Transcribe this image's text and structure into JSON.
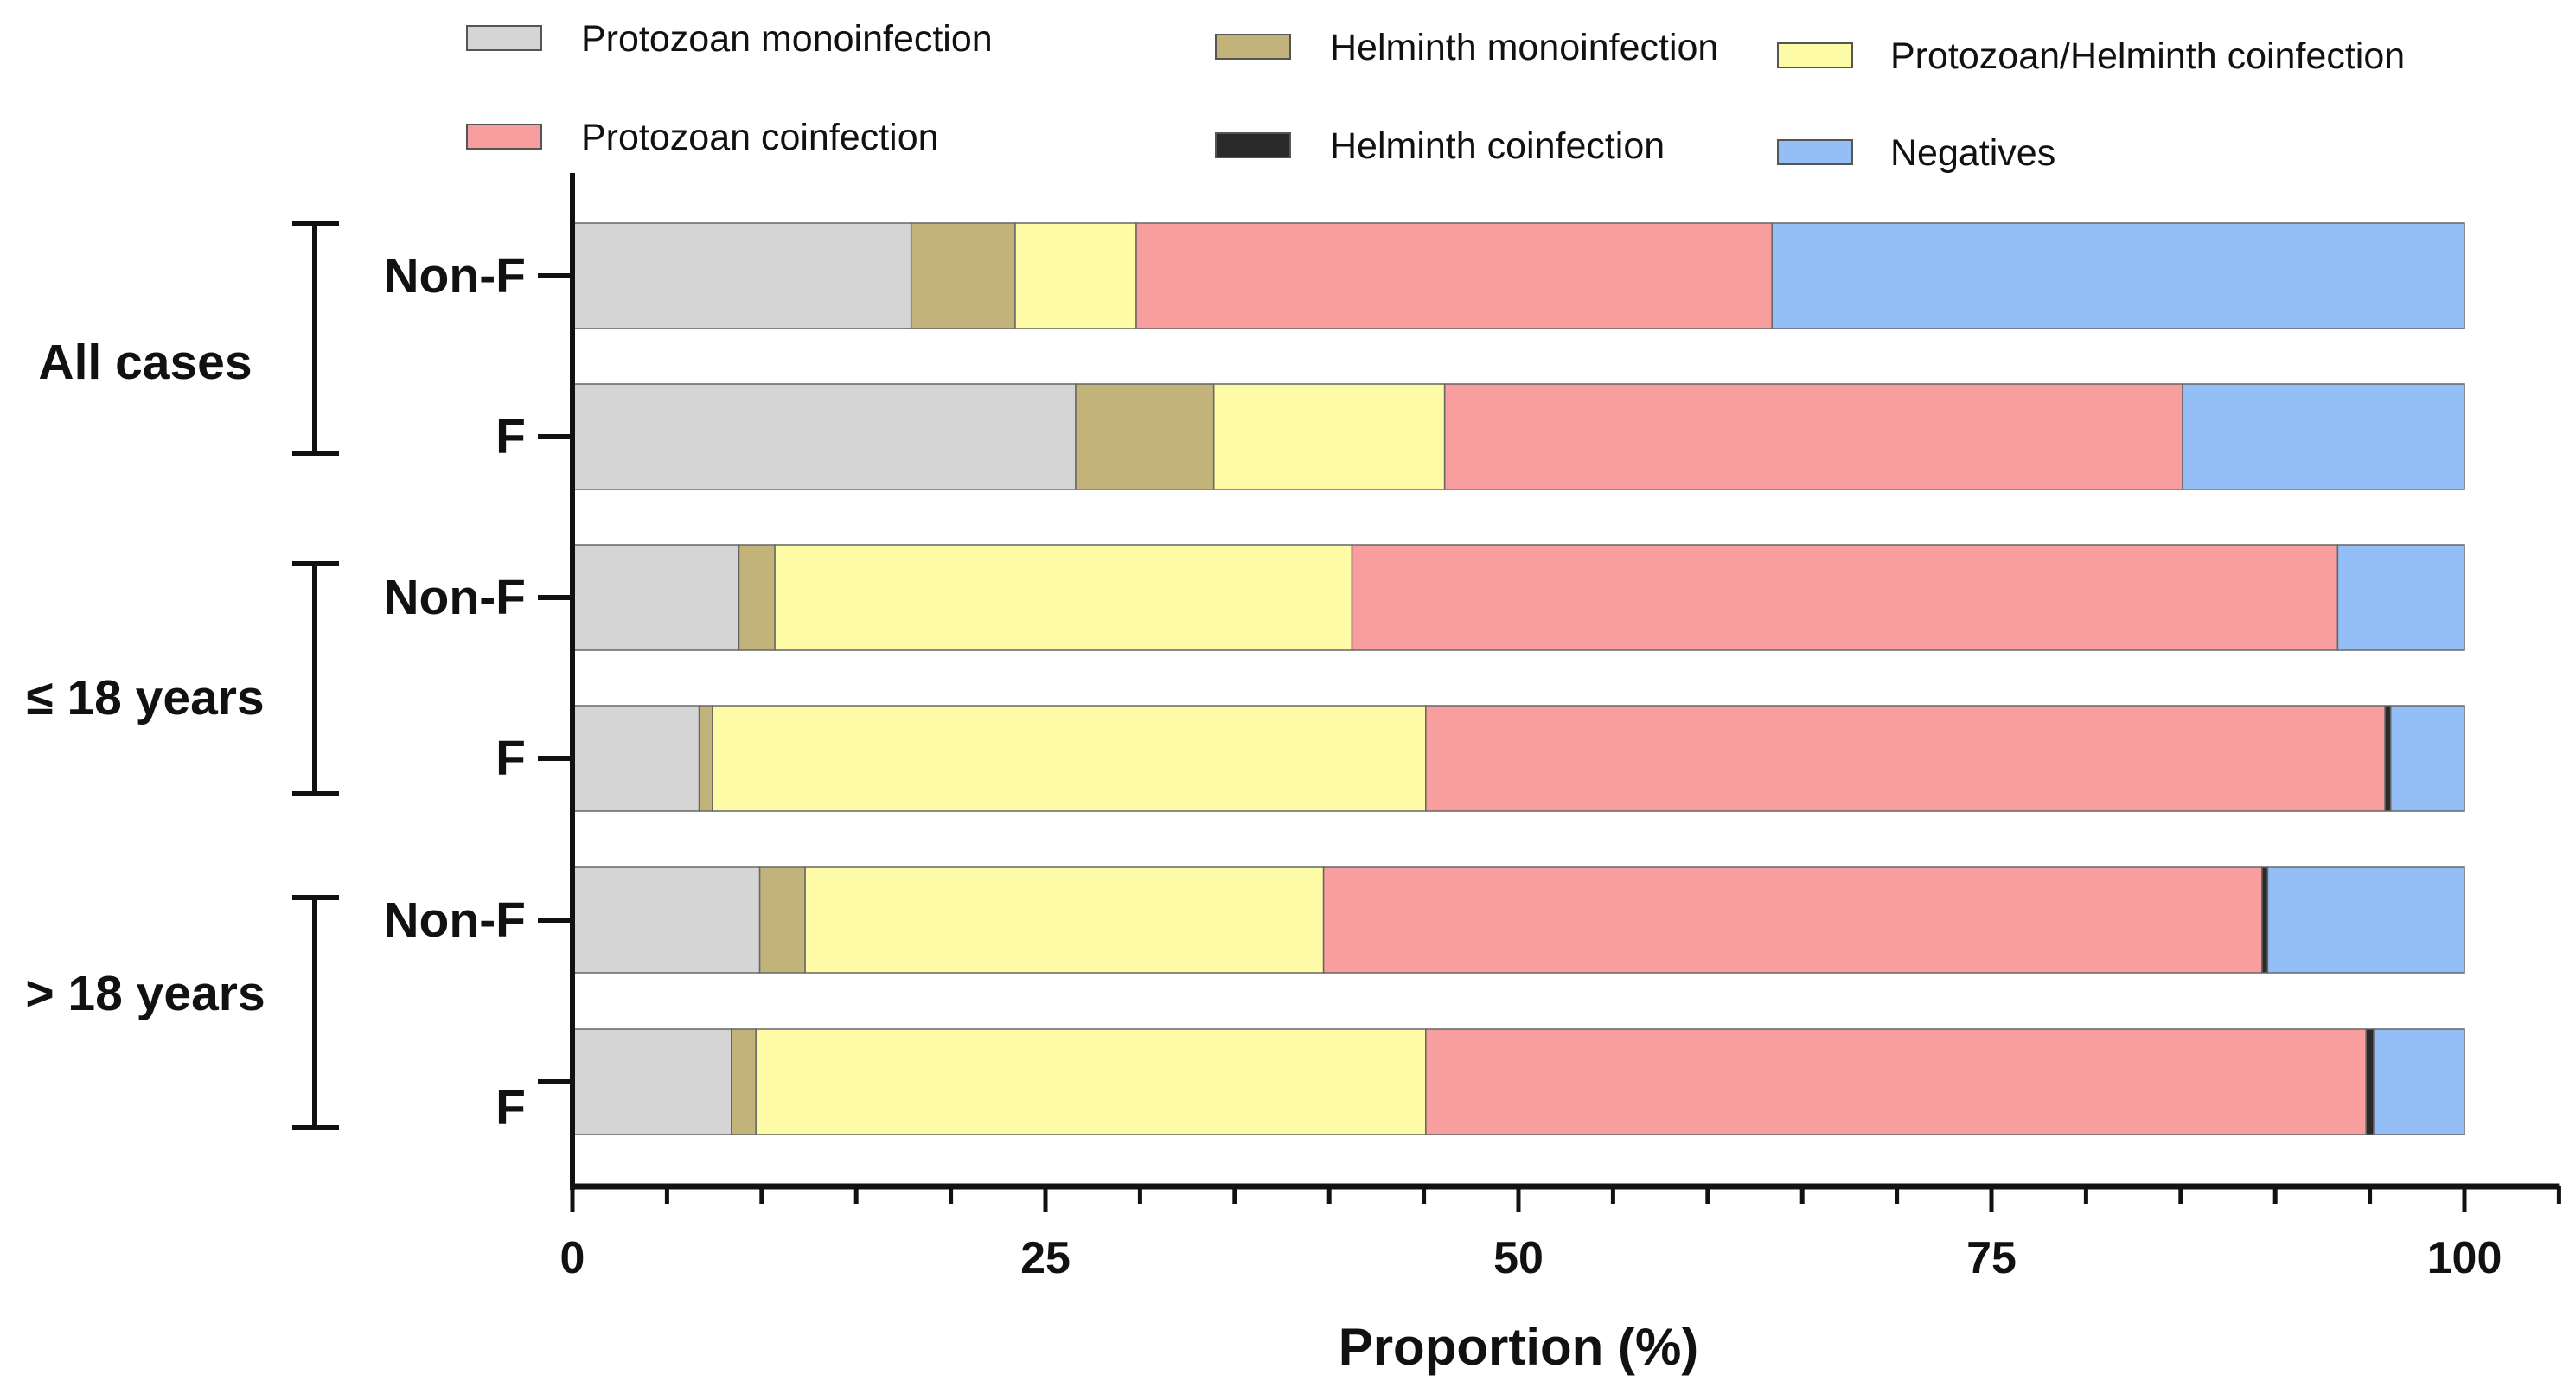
{
  "chart_data": {
    "type": "bar",
    "orientation": "horizontal",
    "stacked": true,
    "title": "",
    "xlabel": "Proportion (%)",
    "ylabel": "",
    "xlim": [
      0,
      105
    ],
    "x_ticks": [
      "0",
      "25",
      "50",
      "75",
      "100"
    ],
    "legend_position": "top",
    "series": [
      {
        "name": "Protozoan monoinfection",
        "color": "#d5d5d5"
      },
      {
        "name": "Helminth monoinfection",
        "color": "#c1b37a"
      },
      {
        "name": "Protozoan/Helminth coinfection",
        "color": "#fdfba6"
      },
      {
        "name": "Protozoan coinfection",
        "color": "#f89e9e"
      },
      {
        "name": "Helminth coinfection",
        "color": "#2a2a2a"
      },
      {
        "name": "Negatives",
        "color": "#93bef6"
      }
    ],
    "groups": [
      {
        "label": "All cases",
        "categories": [
          {
            "label": "Non-F",
            "values": [
              17.9,
              5.5,
              6.4,
              33.6,
              0,
              36.6
            ]
          },
          {
            "label": "F",
            "values": [
              26.6,
              7.3,
              12.2,
              39.0,
              0,
              14.9
            ]
          }
        ]
      },
      {
        "label": "≤ 18 years",
        "categories": [
          {
            "label": "Non-F",
            "values": [
              8.8,
              1.9,
              30.5,
              52.1,
              0,
              6.7
            ]
          },
          {
            "label": "F",
            "values": [
              6.7,
              0.7,
              37.7,
              50.7,
              0.3,
              3.9
            ]
          }
        ]
      },
      {
        "label": "> 18 years",
        "categories": [
          {
            "label": "Non-F",
            "values": [
              9.9,
              2.4,
              27.4,
              49.6,
              0.3,
              10.4
            ]
          },
          {
            "label": "F",
            "values": [
              8.4,
              1.3,
              35.4,
              49.7,
              0.4,
              4.8
            ]
          }
        ]
      }
    ]
  }
}
